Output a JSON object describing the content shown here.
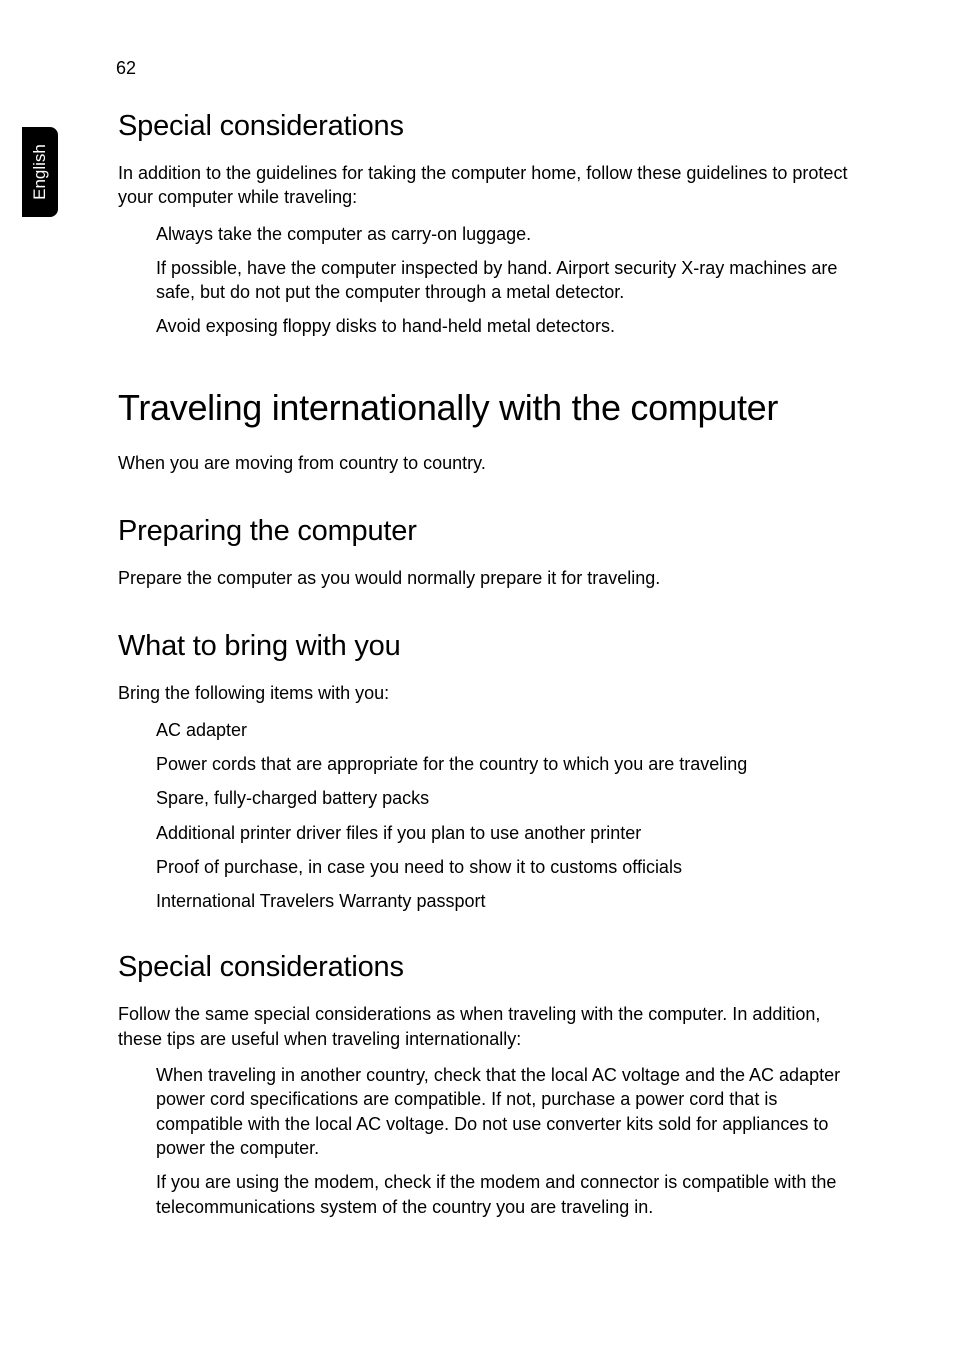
{
  "page_number": "62",
  "side_tab": "English",
  "sections": {
    "sc1": {
      "heading": "Special considerations",
      "intro": "In addition to the guidelines for taking the computer home, follow these guidelines to protect your computer while traveling:",
      "items": {
        "i0": "Always take the computer as carry-on luggage.",
        "i1": "If possible, have the computer inspected by hand. Airport security X-ray machines are safe, but do not put the computer through a metal detector.",
        "i2": "Avoid exposing floppy disks to hand-held metal detectors."
      }
    },
    "ti": {
      "heading": "Traveling internationally with the computer",
      "intro": "When you are moving from country to country."
    },
    "prep": {
      "heading": "Preparing the computer",
      "intro": "Prepare the computer as you would normally prepare it for traveling."
    },
    "bring": {
      "heading": "What to bring with you",
      "intro": "Bring the following items with you:",
      "items": {
        "i0": "AC adapter",
        "i1": "Power cords that are appropriate for the country to which you are traveling",
        "i2": "Spare, fully-charged battery packs",
        "i3": "Additional printer driver files if you plan to use another printer",
        "i4": "Proof of purchase, in case you need to show it to customs officials",
        "i5": "International Travelers Warranty passport"
      }
    },
    "sc2": {
      "heading": "Special considerations",
      "intro": "Follow the same special considerations as when traveling with the computer. In addition, these tips are useful when traveling internationally:",
      "items": {
        "i0": "When traveling in another country, check that the local AC voltage and the AC adapter power cord specifications are compatible. If not, purchase a power cord that is compatible with the local AC voltage. Do not use converter kits sold for appliances to power the computer.",
        "i1": "If you are using the modem, check if the modem and connector is compatible with the telecommunications system of the country you are traveling in."
      }
    }
  }
}
